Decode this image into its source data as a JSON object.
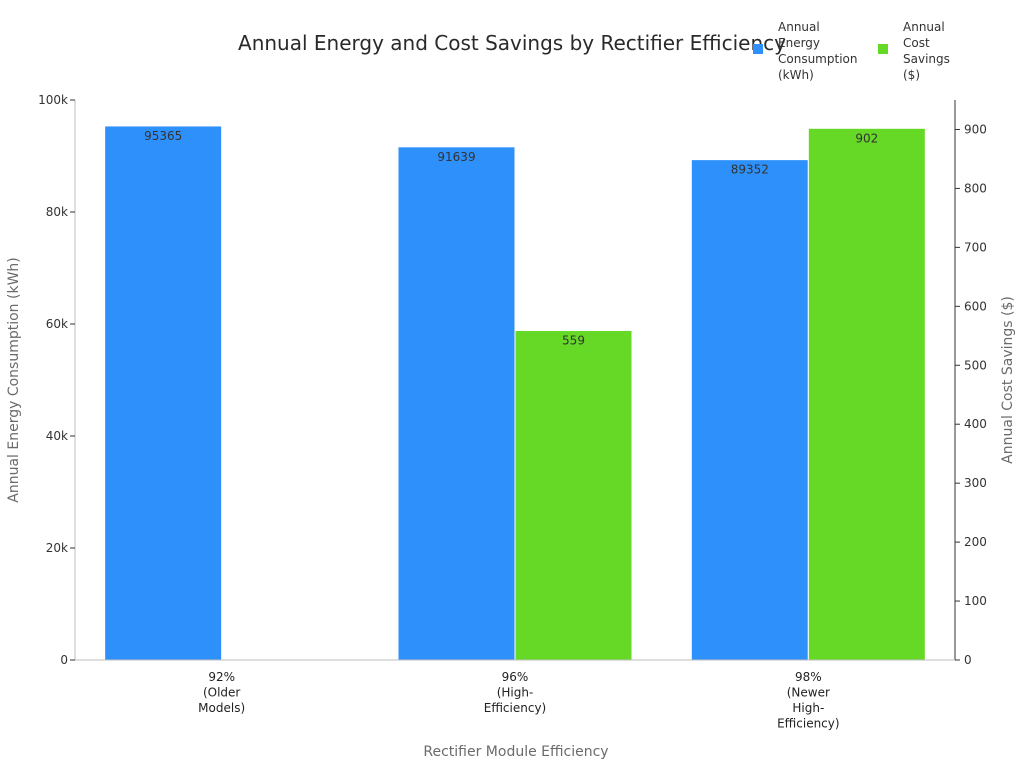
{
  "chart_data": {
    "type": "bar",
    "title": "Annual Energy and Cost Savings by Rectifier Efficiency",
    "xlabel": "Rectifier Module Efficiency",
    "ylabel": "Annual Energy Consumption (kWh)",
    "ylabel_right": "Annual Cost Savings ($)",
    "categories": [
      [
        "92%",
        "(Older",
        "Models)"
      ],
      [
        "96%",
        "(High-",
        "Efficiency)"
      ],
      [
        "98%",
        "(Newer",
        "High-",
        "Efficiency)"
      ]
    ],
    "series": [
      {
        "name": "Annual Energy Consumption (kWh)",
        "legend_lines": [
          "Annual",
          "Energy",
          "Consumption",
          "(kWh)"
        ],
        "axis": "left",
        "color": "#2e90fa",
        "values": [
          95365,
          91639,
          89352
        ],
        "labels": [
          "95365",
          "91639",
          "89352"
        ]
      },
      {
        "name": "Annual Cost Savings ($)",
        "legend_lines": [
          "Annual",
          "Cost",
          "Savings",
          "($)"
        ],
        "axis": "right",
        "color": "#66d926",
        "values": [
          0,
          559,
          902
        ],
        "labels": [
          "",
          "559",
          "902"
        ]
      }
    ],
    "ylim": [
      0,
      100000
    ],
    "ylim_right": [
      0,
      950
    ],
    "yticks": [
      0,
      20000,
      40000,
      60000,
      80000,
      100000
    ],
    "yticklabels": [
      "0",
      "20k",
      "40k",
      "60k",
      "80k",
      "100k"
    ],
    "yticks_right": [
      0,
      100,
      200,
      300,
      400,
      500,
      600,
      700,
      800,
      900
    ],
    "yticklabels_right": [
      "0",
      "100",
      "200",
      "300",
      "400",
      "500",
      "600",
      "700",
      "800",
      "900"
    ],
    "legend_position": "top-right",
    "grid": false
  }
}
